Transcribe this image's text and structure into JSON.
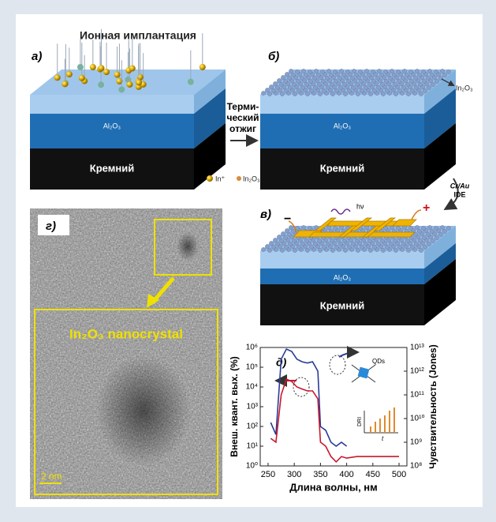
{
  "title": "Ионная имплантация",
  "panels": {
    "a": {
      "label": "а)",
      "layer": "Al₂O₃",
      "substrate": "Кремний",
      "legend_in": "In⁺",
      "legend_oxide": "In₂O₃"
    },
    "b": {
      "label": "б)",
      "layer": "Al₂O₃",
      "substrate": "Кремний",
      "arrow_label": "In₂O₃"
    },
    "c": {
      "label": "в)",
      "layer": "Al₂O₃",
      "substrate": "Кремний",
      "light": "hν",
      "minus": "−",
      "plus": "+"
    },
    "d": {
      "label": "г)",
      "caption": "In₂O₃ nanocrystal",
      "scale": "2 nm"
    }
  },
  "steps": {
    "anneal": [
      "Терми-",
      "ческий",
      "отжиг"
    ],
    "electrodes": [
      "Cr/Au",
      "IDE"
    ]
  },
  "chart_data": {
    "type": "line",
    "label": "д)",
    "xlabel": "Длина волны, нм",
    "ylabel": "Внеш. квант. вых. (%)",
    "y2label": "Чувствительность (Jones)",
    "inset": {
      "dot_label": "QDs",
      "ylabel": "DRI",
      "xlabel": "t"
    },
    "x": [
      255,
      265,
      275,
      285,
      295,
      305,
      315,
      325,
      335,
      345,
      350,
      360,
      370,
      380,
      390,
      400,
      420,
      450,
      500
    ],
    "series": [
      {
        "color": "#2a3b98",
        "axis": "y2",
        "values": [
          6800000000,
          2100000000,
          3200000000000,
          8600000000000,
          6800000000000,
          3200000000000,
          2500000000000,
          2200000000000,
          2500000000000,
          1000000000000,
          4600000000,
          3200000000,
          1000000000,
          680000000,
          1000000000,
          680000000,
          null,
          null,
          null
        ]
      },
      {
        "color": "#c8182c",
        "axis": "y",
        "values": [
          25,
          16,
          4000,
          25000,
          19000,
          10000,
          7900,
          6300,
          6300,
          2500,
          16,
          10,
          3,
          1.6,
          3,
          2.5,
          3,
          3,
          3
        ]
      }
    ],
    "xlim": [
      235,
      515
    ],
    "xticks": [
      250,
      300,
      350,
      400,
      450,
      500
    ],
    "ylog": true,
    "ylim": [
      1,
      1000000
    ],
    "yticks": [
      {
        "value": 1,
        "label": "10⁰"
      },
      {
        "value": 10,
        "label": "10¹"
      },
      {
        "value": 100,
        "label": "10²"
      },
      {
        "value": 1000,
        "label": "10³"
      },
      {
        "value": 10000,
        "label": "10⁴"
      },
      {
        "value": 100000,
        "label": "10⁵"
      },
      {
        "value": 1000000,
        "label": "10⁶"
      }
    ],
    "y2lim": [
      100000000,
      10000000000000
    ],
    "y2ticks": [
      {
        "value": 100000000,
        "label": "10⁸"
      },
      {
        "value": 1000000000,
        "label": "10⁹"
      },
      {
        "value": 10000000000,
        "label": "10¹⁰"
      },
      {
        "value": 100000000000,
        "label": "10¹¹"
      },
      {
        "value": 1000000000000,
        "label": "10¹²"
      },
      {
        "value": 10000000000000,
        "label": "10¹³"
      }
    ]
  }
}
